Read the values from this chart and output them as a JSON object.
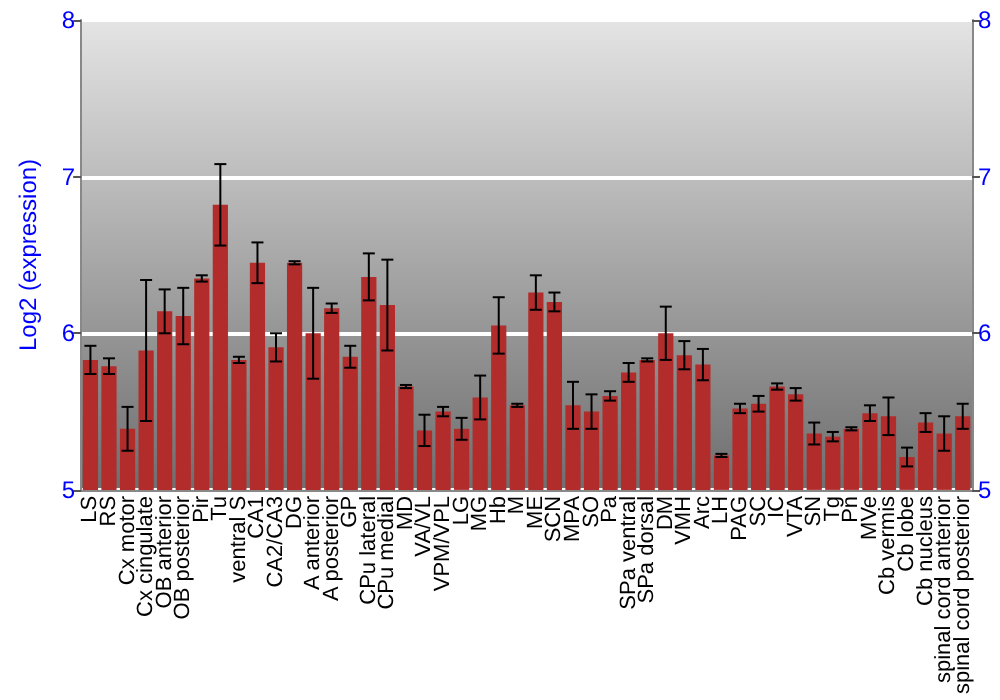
{
  "chart_data": {
    "type": "bar",
    "ylabel": "Log2 (expression)",
    "categories": [
      "LS",
      "RS",
      "Cx motor",
      "Cx cingulate",
      "OB anterior",
      "OB posterior",
      "Pir",
      "Tu",
      "ventral S",
      "CA1",
      "CA2/CA3",
      "DG",
      "A anterior",
      "A posterior",
      "GP",
      "CPu lateral",
      "CPu medial",
      "MD",
      "VA/VL",
      "VPM/VPL",
      "LG",
      "MG",
      "Hb",
      "M",
      "ME",
      "SCN",
      "MPA",
      "SO",
      "Pa",
      "SPa ventral",
      "SPa dorsal",
      "DM",
      "VMH",
      "Arc",
      "LH",
      "PAG",
      "SC",
      "IC",
      "VTA",
      "SN",
      "Tg",
      "Pn",
      "MVe",
      "Cb vermis",
      "Cb lobe",
      "Cb nucleus",
      "spinal cord anterior",
      "spinal cord posterior"
    ],
    "values": [
      5.83,
      5.79,
      5.39,
      5.89,
      6.14,
      6.11,
      6.35,
      6.82,
      5.83,
      6.45,
      5.91,
      6.45,
      6.0,
      6.16,
      5.85,
      6.36,
      6.18,
      5.66,
      5.38,
      5.5,
      5.39,
      5.59,
      6.05,
      5.54,
      6.26,
      6.2,
      5.54,
      5.5,
      5.6,
      5.75,
      5.83,
      6.0,
      5.86,
      5.8,
      5.22,
      5.52,
      5.55,
      5.66,
      5.61,
      5.36,
      5.34,
      5.39,
      5.49,
      5.47,
      5.21,
      5.43,
      5.36,
      5.47
    ],
    "errors": [
      0.09,
      0.05,
      0.14,
      0.45,
      0.14,
      0.18,
      0.02,
      0.26,
      0.02,
      0.13,
      0.09,
      0.01,
      0.29,
      0.03,
      0.07,
      0.15,
      0.29,
      0.01,
      0.1,
      0.03,
      0.07,
      0.14,
      0.18,
      0.01,
      0.11,
      0.06,
      0.15,
      0.11,
      0.03,
      0.06,
      0.01,
      0.17,
      0.09,
      0.1,
      0.01,
      0.03,
      0.05,
      0.02,
      0.04,
      0.07,
      0.03,
      0.01,
      0.05,
      0.12,
      0.06,
      0.06,
      0.11,
      0.08
    ],
    "color": "#b22c2c",
    "ylim": [
      5,
      8
    ],
    "yticks": [
      5,
      6,
      7,
      8
    ],
    "y2lim": [
      5,
      8
    ],
    "y2ticks": [
      5,
      6,
      7,
      8
    ],
    "grid": "y"
  }
}
